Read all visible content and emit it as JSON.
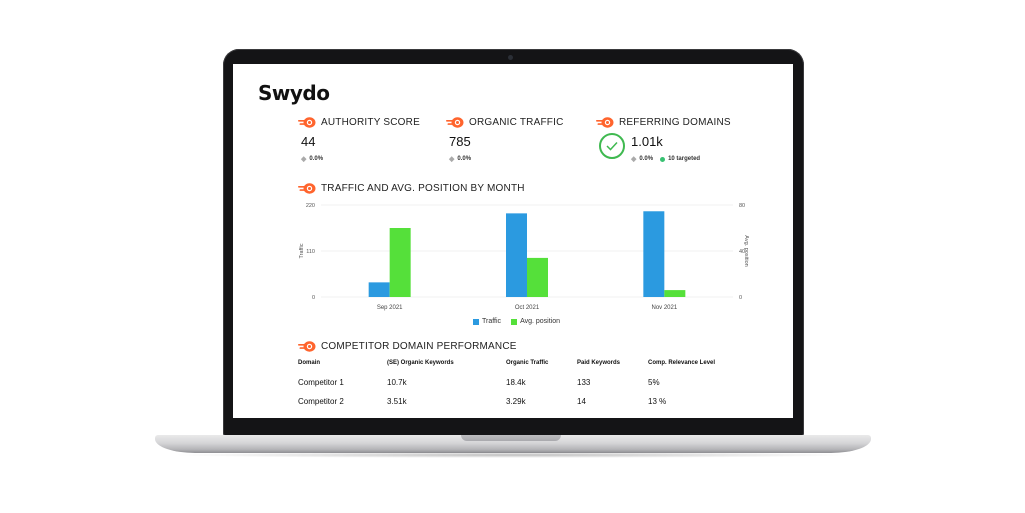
{
  "app": {
    "logo_text": "Swydo"
  },
  "colors": {
    "traffic": "#2b9ae0",
    "position": "#55e03a",
    "semrush": "#ff642d",
    "check": "#3fb950"
  },
  "kpis": [
    {
      "title": "AUTHORITY SCORE",
      "value": "44",
      "delta": "0.0%"
    },
    {
      "title": "ORGANIC TRAFFIC",
      "value": "785",
      "delta": "0.0%"
    },
    {
      "title": "REFERRING DOMAINS",
      "value": "1.01k",
      "delta": "0.0%",
      "extra": "10 targeted"
    }
  ],
  "chart_section": {
    "title": "TRAFFIC AND AVG. POSITION BY MONTH"
  },
  "chart_data": {
    "type": "bar",
    "categories": [
      "Sep 2021",
      "Oct 2021",
      "Nov 2021"
    ],
    "series": [
      {
        "name": "Traffic",
        "axis": "left",
        "values": [
          35,
          200,
          205
        ]
      },
      {
        "name": "Avg. position",
        "axis": "right",
        "values": [
          60,
          34,
          6
        ]
      }
    ],
    "ylabel": "Traffic",
    "y2label": "Avg. position",
    "yticks": [
      "0",
      "110",
      "220"
    ],
    "y2ticks": [
      "0",
      "40",
      "80"
    ],
    "ylim": [
      0,
      220
    ],
    "y2lim": [
      0,
      80
    ],
    "grid": true,
    "legend": "bottom"
  },
  "competitors": {
    "title": "COMPETITOR DOMAIN PERFORMANCE",
    "headers": [
      "Domain",
      "(SE) Organic Keywords",
      "Organic Traffic",
      "Paid Keywords",
      "Comp. Relevance Level"
    ],
    "rows": [
      [
        "Competitor 1",
        "10.7k",
        "18.4k",
        "133",
        "5%"
      ],
      [
        "Competitor 2",
        "3.51k",
        "3.29k",
        "14",
        "13 %"
      ]
    ]
  }
}
